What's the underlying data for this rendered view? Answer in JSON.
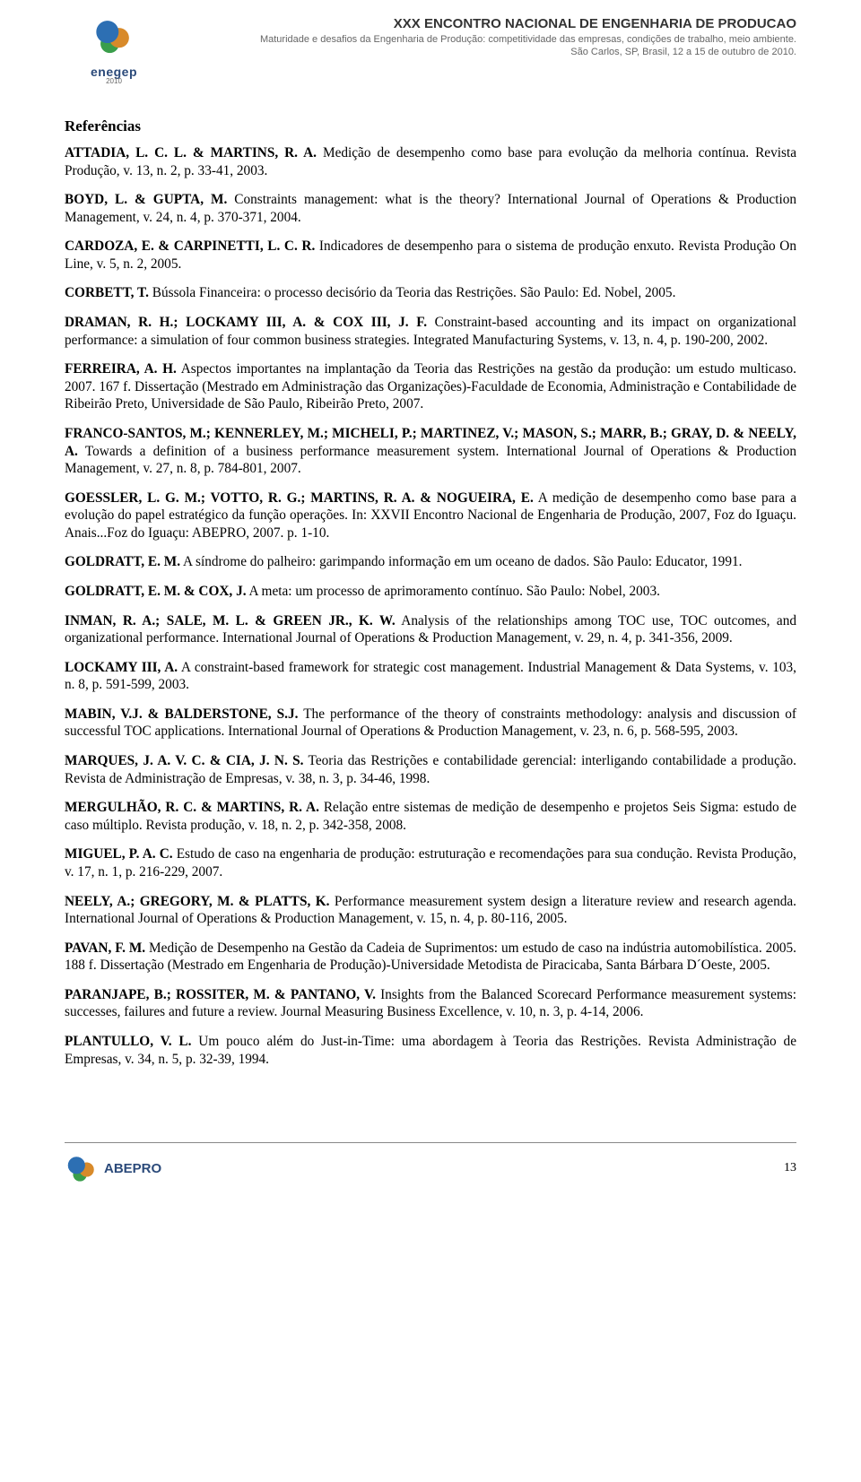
{
  "header": {
    "logo_text": "enegep",
    "logo_year": "2010",
    "title": "XXX ENCONTRO NACIONAL DE ENGENHARIA DE PRODUCAO",
    "subtitle1": "Maturidade e desafios da Engenharia de Produção: competitividade das empresas, condições de trabalho, meio ambiente.",
    "subtitle2": "São Carlos, SP, Brasil, 12 a 15 de outubro de 2010."
  },
  "section_title": "Referências",
  "references": [
    {
      "html": "<b>ATTADIA, L. C. L. &amp; MARTINS, R. A.</b> Medição de desempenho como base para evolução da melhoria contínua. Revista Produção, v. 13, n. 2, p. 33-41, 2003."
    },
    {
      "html": "<b>BOYD, L. &amp; GUPTA, M.</b> Constraints management: what is the theory? International Journal of Operations &amp; Production Management, v. 24, n. 4, p. 370-371, 2004."
    },
    {
      "html": "<b>CARDOZA, E. &amp; CARPINETTI, L. C. R.</b> Indicadores de desempenho para o sistema de produção enxuto. Revista Produção On Line, v. 5, n. 2, 2005."
    },
    {
      "html": "<b>CORBETT, T.</b> Bússola Financeira: o processo decisório da Teoria das Restrições. São Paulo: Ed. Nobel, 2005."
    },
    {
      "html": "<b>DRAMAN, R. H.; LOCKAMY III, A. &amp; COX III, J. F.</b> Constraint-based accounting and its impact on organizational performance: a simulation of four common business strategies. Integrated Manufacturing Systems, v. 13, n. 4, p. 190-200, 2002."
    },
    {
      "html": "<b>FERREIRA, A. H.</b> Aspectos importantes na implantação da Teoria das Restrições na gestão da produção: um estudo multicaso. 2007. 167 f. Dissertação (Mestrado em Administração das Organizações)-Faculdade de Economia, Administração e Contabilidade de Ribeirão Preto, Universidade de São Paulo, Ribeirão Preto, 2007."
    },
    {
      "html": "<b>FRANCO-SANTOS, M.; KENNERLEY, M.; MICHELI, P.; MARTINEZ, V.; MASON, S.; MARR, B.; GRAY, D. &amp; NEELY, A.</b> Towards a definition of a business performance measurement system. International Journal of Operations &amp; Production Management, v. 27, n. 8, p. 784-801, 2007."
    },
    {
      "html": "<b>GOESSLER, L. G. M.; VOTTO, R. G.; MARTINS, R. A. &amp; NOGUEIRA, E.</b> A medição de desempenho como base para a evolução do papel estratégico da função operações. In: XXVII Encontro Nacional de Engenharia de Produção, 2007, Foz do Iguaçu. Anais...Foz do Iguaçu: ABEPRO, 2007. p. 1-10."
    },
    {
      "html": "<b>GOLDRATT, E. M.</b> A síndrome do palheiro: garimpando informação em um oceano de dados. São Paulo: Educator, 1991."
    },
    {
      "html": "<b>GOLDRATT, E. M. &amp; COX, J.</b> A meta: um processo de aprimoramento contínuo. São Paulo: Nobel, 2003."
    },
    {
      "html": "<b>INMAN, R. A.; SALE, M. L. &amp; GREEN JR., K. W.</b> Analysis of the relationships among TOC use, TOC outcomes, and organizational performance. International Journal of Operations &amp; Production Management, v. 29, n. 4, p. 341-356, 2009."
    },
    {
      "html": "<b>LOCKAMY III, A.</b> A constraint-based framework for strategic cost management. Industrial Management &amp; Data Systems, v. 103, n. 8, p. 591-599, 2003."
    },
    {
      "html": "<b>MABIN, V.J. &amp; BALDERSTONE, S.J.</b> The performance of the theory of constraints methodology: analysis and discussion of successful TOC applications. International Journal of Operations &amp; Production Management, v. 23, n. 6, p. 568-595, 2003."
    },
    {
      "html": "<b>MARQUES, J. A. V. C. &amp; CIA, J. N. S.</b> Teoria das Restrições e contabilidade gerencial: interligando contabilidade a produção. Revista de Administração de Empresas, v. 38, n. 3, p. 34-46, 1998."
    },
    {
      "html": "<b>MERGULHÃO, R. C. &amp; MARTINS, R. A.</b> Relação entre sistemas de medição de desempenho e projetos Seis Sigma: estudo de caso múltiplo. Revista produção, v. 18, n. 2, p. 342-358, 2008."
    },
    {
      "html": "<b>MIGUEL, P. A. C.</b> Estudo de caso na engenharia de produção: estruturação e recomendações para sua condução. Revista Produção, v. 17, n. 1, p. 216-229, 2007."
    },
    {
      "html": "<b>NEELY, A.; GREGORY, M. &amp; PLATTS, K.</b> Performance measurement system design a literature review and research agenda. International Journal of Operations &amp; Production Management, v. 15, n. 4, p. 80-116, 2005."
    },
    {
      "html": "<b>PAVAN, F. M.</b> Medição de Desempenho na Gestão da Cadeia de Suprimentos: um estudo de caso na indústria automobilística. 2005. 188 f. Dissertação (Mestrado em Engenharia de Produção)-Universidade Metodista de Piracicaba, Santa Bárbara D´Oeste, 2005."
    },
    {
      "html": "<b>PARANJAPE, B.; ROSSITER, M. &amp; PANTANO, V.</b> Insights from the Balanced Scorecard Performance measurement systems: successes, failures and future a review. Journal Measuring Business Excellence, v. 10, n. 3, p. 4-14, 2006."
    },
    {
      "html": "<b>PLANTULLO, V. L.</b> Um pouco além do Just-in-Time: uma abordagem à Teoria das Restrições. Revista Administração de Empresas, v. 34, n. 5, p. 32-39, 1994."
    }
  ],
  "footer": {
    "logo_text": "ABEPRO",
    "page_number": "13"
  }
}
